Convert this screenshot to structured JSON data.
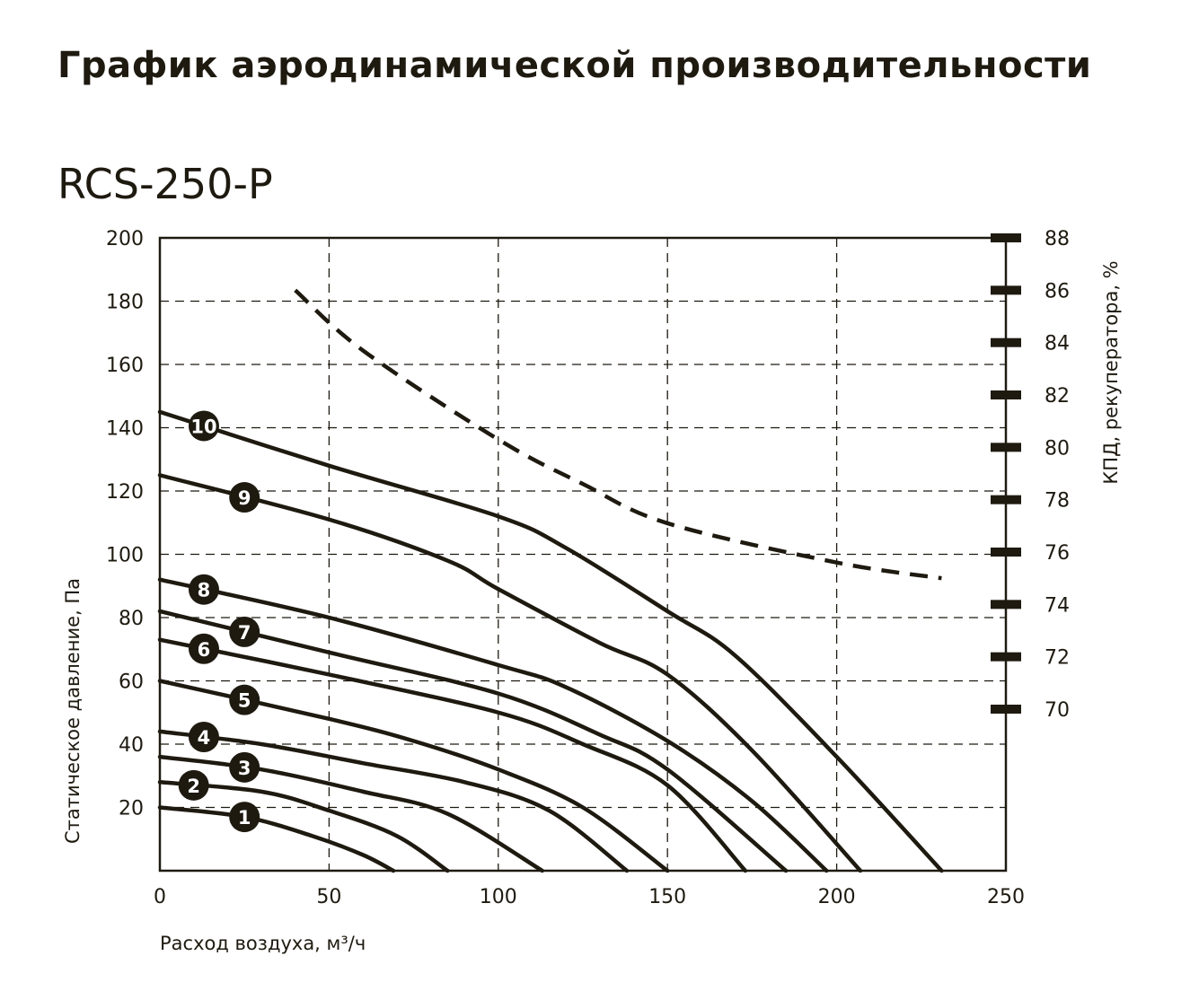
{
  "title": "График аэродинамической производительности",
  "model": "RCS-250-P",
  "chart_data": {
    "type": "line",
    "xlabel": "Расход воздуха, м³/ч",
    "ylabel": "Статическое давление, Па",
    "y2label": "КПД, рекуператора, %",
    "xlim": [
      0,
      250
    ],
    "ylim": [
      0,
      200
    ],
    "y2lim": [
      70,
      88
    ],
    "xticks": [
      0,
      50,
      100,
      150,
      200,
      250
    ],
    "yticks": [
      20,
      40,
      60,
      80,
      100,
      120,
      140,
      160,
      180,
      200
    ],
    "y2ticks": [
      70,
      72,
      74,
      76,
      78,
      80,
      82,
      84,
      86,
      88
    ],
    "grid": "dashed",
    "line_color": "#1e1a10",
    "series": [
      {
        "name": "1",
        "x": [
          0,
          25,
          45,
          60,
          69
        ],
        "y": [
          20,
          17,
          11,
          5,
          0
        ]
      },
      {
        "name": "2",
        "x": [
          0,
          30,
          50,
          70,
          85
        ],
        "y": [
          28,
          25,
          19,
          11,
          0
        ]
      },
      {
        "name": "3",
        "x": [
          0,
          30,
          60,
          85,
          113
        ],
        "y": [
          36,
          32,
          25,
          18,
          0
        ]
      },
      {
        "name": "4",
        "x": [
          0,
          30,
          60,
          90,
          115,
          138
        ],
        "y": [
          44,
          40,
          34,
          28,
          19,
          0
        ]
      },
      {
        "name": "5",
        "x": [
          0,
          50,
          75,
          100,
          125,
          150
        ],
        "y": [
          60,
          48,
          41,
          32,
          20,
          0
        ]
      },
      {
        "name": "6",
        "x": [
          0,
          50,
          100,
          125,
          150,
          173
        ],
        "y": [
          73,
          62,
          50,
          40,
          27,
          0
        ]
      },
      {
        "name": "7",
        "x": [
          0,
          50,
          100,
          130,
          150,
          185
        ],
        "y": [
          82,
          69,
          56,
          43,
          32,
          0
        ]
      },
      {
        "name": "8",
        "x": [
          0,
          50,
          100,
          120,
          150,
          175,
          197
        ],
        "y": [
          92,
          80,
          65,
          58,
          41,
          22,
          0
        ]
      },
      {
        "name": "9",
        "x": [
          0,
          50,
          85,
          100,
          130,
          150,
          175,
          207
        ],
        "y": [
          125,
          111,
          98,
          89,
          72,
          62,
          38,
          0
        ]
      },
      {
        "name": "10",
        "x": [
          0,
          50,
          100,
          120,
          150,
          170,
          200,
          231
        ],
        "y": [
          145,
          128,
          112,
          102,
          82,
          68,
          36,
          0
        ]
      }
    ],
    "efficiency": {
      "axis": "right",
      "style": "dashed",
      "x": [
        40,
        60,
        100,
        125,
        150,
        200,
        231
      ],
      "y": [
        86.0,
        83.7,
        80.3,
        78.6,
        77.1,
        75.6,
        75.0
      ]
    }
  }
}
